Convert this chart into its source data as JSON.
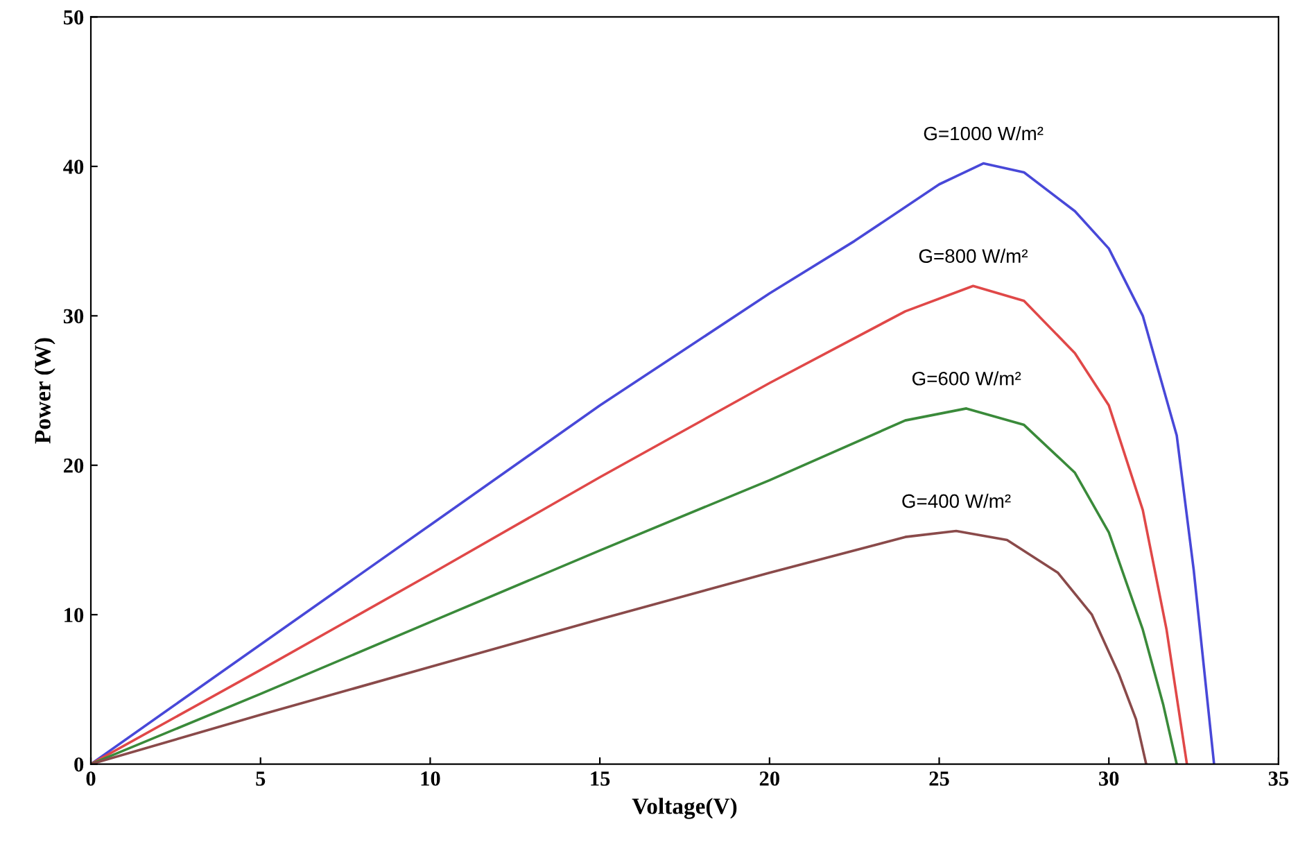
{
  "chart_data": {
    "type": "line",
    "xlabel": "Voltage(V)",
    "ylabel": "Power (W)",
    "xlim": [
      0,
      35
    ],
    "ylim": [
      0,
      50
    ],
    "xticks": [
      0,
      5,
      10,
      15,
      20,
      25,
      30,
      35
    ],
    "yticks": [
      0,
      10,
      20,
      30,
      40,
      50
    ],
    "grid": false,
    "legend": false,
    "marker": "none",
    "line_style": "solid",
    "series": [
      {
        "name": "G=1000 W/m²",
        "color": "#4848d8",
        "x": [
          0,
          5,
          10,
          15,
          20,
          22.5,
          25,
          26.3,
          27.5,
          29,
          30,
          31,
          32,
          32.5,
          33.1
        ],
        "values": [
          0,
          8,
          16,
          24,
          31.5,
          35,
          38.8,
          40.2,
          39.6,
          37,
          34.5,
          30,
          22,
          13,
          0
        ]
      },
      {
        "name": "G=800 W/m²",
        "color": "#e04848",
        "x": [
          0,
          5,
          10,
          15,
          20,
          24,
          26,
          27.5,
          29,
          30,
          31,
          31.7,
          32.3
        ],
        "values": [
          0,
          6.3,
          12.7,
          19.2,
          25.5,
          30.3,
          32,
          31,
          27.5,
          24,
          17,
          9,
          0
        ]
      },
      {
        "name": "G=600 W/m²",
        "color": "#3a8a3a",
        "x": [
          0,
          5,
          10,
          15,
          20,
          24,
          25.8,
          27.5,
          29,
          30,
          31,
          31.6,
          32
        ],
        "values": [
          0,
          4.7,
          9.5,
          14.3,
          19,
          23,
          23.8,
          22.7,
          19.5,
          15.5,
          9,
          4,
          0
        ]
      },
      {
        "name": "G=400 W/m²",
        "color": "#8a4a4a",
        "x": [
          0,
          5,
          10,
          15,
          20,
          24,
          25.5,
          27,
          28.5,
          29.5,
          30.3,
          30.8,
          31.1
        ],
        "values": [
          0,
          3.3,
          6.5,
          9.7,
          12.8,
          15.2,
          15.6,
          15,
          12.8,
          10,
          6,
          3,
          0
        ]
      }
    ]
  }
}
